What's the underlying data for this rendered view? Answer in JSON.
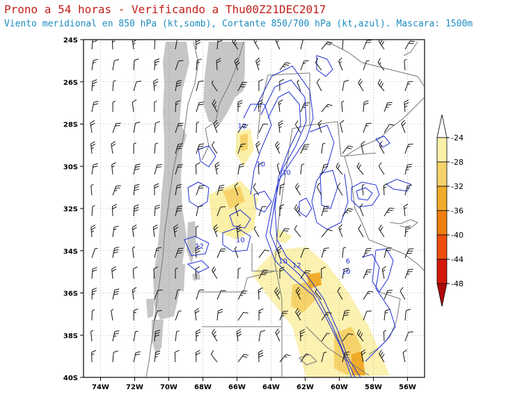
{
  "title": "Prono a 54 horas - Verificando a Thu00Z21DEC2017",
  "subtitle": "Viento meridional en 850 hPa (kt,somb), Cortante 850/700 hPa (kt,azul). Mascara: 1500m",
  "colors": {
    "title": "#c0201a",
    "subtitle": "#1d8cbf",
    "mask": "#c6c6c6",
    "shear_contour": "#1f2fd0",
    "barb": "#111111",
    "borders": "#777777"
  },
  "axes": {
    "lat_labels": [
      "24S",
      "26S",
      "28S",
      "30S",
      "32S",
      "34S",
      "36S",
      "38S",
      "40S"
    ],
    "lon_labels": [
      "74W",
      "72W",
      "70W",
      "68W",
      "66W",
      "64W",
      "62W",
      "60W",
      "58W",
      "56W"
    ],
    "lon_range": [
      -75,
      -55
    ],
    "lat_range": [
      -40,
      -24
    ]
  },
  "colorbar": {
    "labels": [
      "-24",
      "-28",
      "-32",
      "-36",
      "-40",
      "-44",
      "-48"
    ],
    "colors": [
      "#ffffff",
      "#fbf0a8",
      "#f6d36a",
      "#f1ab2a",
      "#f07d0f",
      "#ed4e0c",
      "#d4170a",
      "#b00808"
    ]
  },
  "contour_labels": [
    {
      "text": "12",
      "lon": -65.7,
      "lat": -28.2
    },
    {
      "text": "10",
      "lon": -63.1,
      "lat": -30.4
    },
    {
      "text": "12",
      "lon": -68.2,
      "lat": -33.9
    },
    {
      "text": "10",
      "lon": -65.8,
      "lat": -33.6
    },
    {
      "text": "10",
      "lon": -63.3,
      "lat": -34.6
    },
    {
      "text": "12",
      "lon": -62.5,
      "lat": -34.8
    },
    {
      "text": "6",
      "lon": -59.5,
      "lat": -34.6
    },
    {
      "text": "10",
      "lon": -59.6,
      "lat": -35.1
    },
    {
      "text": "10",
      "lon": -64.6,
      "lat": -30.0
    }
  ]
}
